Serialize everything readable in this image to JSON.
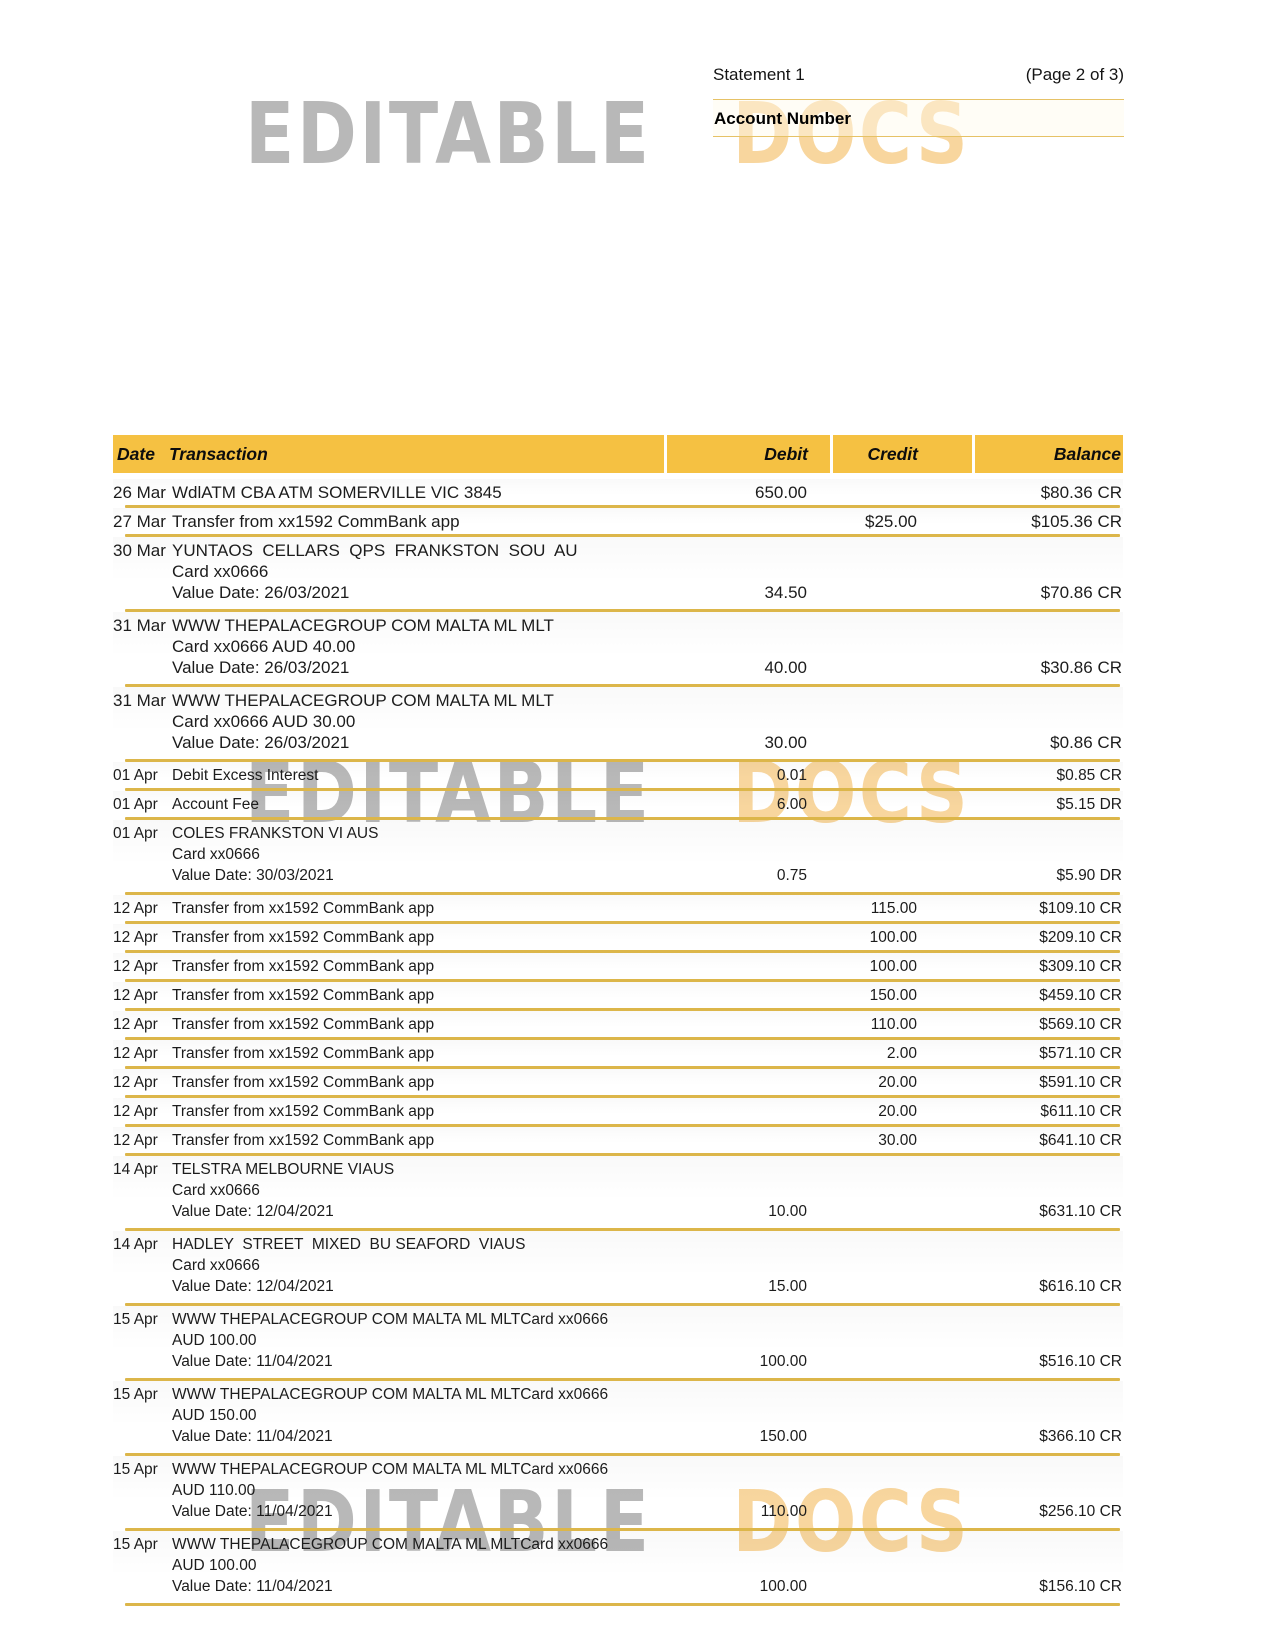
{
  "header": {
    "statement_label": "Statement 1",
    "page_label": "(Page 2 of 3)",
    "account_number_label": "Account Number"
  },
  "watermark": {
    "word1": "EDITABLE",
    "word2": "DOCS",
    "gray_color": "#8c8c8c",
    "orange_color": "#f0a328"
  },
  "table": {
    "header_bg": "#f5c142",
    "separator_color": "#dcb64a",
    "columns": [
      "Date",
      "Transaction",
      "Debit",
      "Credit",
      "Balance"
    ],
    "rows": [
      {
        "date": "26 Mar",
        "lines": [
          "WdlATM CBA ATM SOMERVILLE VIC 3845"
        ],
        "debit": "650.00",
        "credit": "",
        "balance": "$80.36 CR"
      },
      {
        "date": "27 Mar",
        "lines": [
          "Transfer from xx1592 CommBank app"
        ],
        "debit": "",
        "credit": "$25.00",
        "balance": "$105.36 CR"
      },
      {
        "date": "30 Mar",
        "lines": [
          "YUNTAOS  CELLARS  QPS  FRANKSTON  SOU  AU",
          "Card xx0666",
          "Value Date: 26/03/2021"
        ],
        "debit": "34.50",
        "credit": "",
        "balance": "$70.86 CR"
      },
      {
        "date": "31 Mar",
        "lines": [
          "WWW THEPALACEGROUP COM MALTA ML MLT",
          "Card xx0666 AUD 40.00",
          "Value Date: 26/03/2021"
        ],
        "debit": "40.00",
        "credit": "",
        "balance": "$30.86 CR"
      },
      {
        "date": "31 Mar",
        "lines": [
          "WWW THEPALACEGROUP COM MALTA ML MLT",
          "Card xx0666 AUD 30.00",
          "Value Date: 26/03/2021"
        ],
        "debit": "30.00",
        "credit": "",
        "balance": "$0.86 CR"
      },
      {
        "date": "01 Apr",
        "lines": [
          "Debit Excess Interest"
        ],
        "debit": "0.01",
        "credit": "",
        "balance": "$0.85 CR"
      },
      {
        "date": "01 Apr",
        "lines": [
          "Account Fee"
        ],
        "debit": "6.00",
        "credit": "",
        "balance": "$5.15 DR"
      },
      {
        "date": "01 Apr",
        "lines": [
          "COLES FRANKSTON VI AUS",
          "Card xx0666",
          "Value Date: 30/03/2021"
        ],
        "debit": "0.75",
        "credit": "",
        "balance": "$5.90 DR"
      },
      {
        "date": "12 Apr",
        "lines": [
          "Transfer from xx1592 CommBank app"
        ],
        "debit": "",
        "credit": "115.00",
        "balance": "$109.10 CR"
      },
      {
        "date": "12 Apr",
        "lines": [
          "Transfer from xx1592 CommBank app"
        ],
        "debit": "",
        "credit": "100.00",
        "balance": "$209.10 CR"
      },
      {
        "date": "12 Apr",
        "lines": [
          "Transfer from xx1592 CommBank app"
        ],
        "debit": "",
        "credit": "100.00",
        "balance": "$309.10 CR"
      },
      {
        "date": "12 Apr",
        "lines": [
          "Transfer from xx1592 CommBank app"
        ],
        "debit": "",
        "credit": "150.00",
        "balance": "$459.10 CR"
      },
      {
        "date": "12 Apr",
        "lines": [
          "Transfer from xx1592 CommBank app"
        ],
        "debit": "",
        "credit": "110.00",
        "balance": "$569.10 CR"
      },
      {
        "date": "12 Apr",
        "lines": [
          "Transfer from xx1592 CommBank app"
        ],
        "debit": "",
        "credit": "2.00",
        "balance": "$571.10 CR"
      },
      {
        "date": "12 Apr",
        "lines": [
          "Transfer from xx1592 CommBank app"
        ],
        "debit": "",
        "credit": "20.00",
        "balance": "$591.10 CR"
      },
      {
        "date": "12 Apr",
        "lines": [
          "Transfer from xx1592 CommBank app"
        ],
        "debit": "",
        "credit": "20.00",
        "balance": "$611.10 CR"
      },
      {
        "date": "12 Apr",
        "lines": [
          "Transfer from xx1592 CommBank app"
        ],
        "debit": "",
        "credit": "30.00",
        "balance": "$641.10 CR"
      },
      {
        "date": "14 Apr",
        "lines": [
          "TELSTRA MELBOURNE VIAUS",
          "Card xx0666",
          "Value Date: 12/04/2021"
        ],
        "debit": "10.00",
        "credit": "",
        "balance": "$631.10 CR"
      },
      {
        "date": "14 Apr",
        "lines": [
          "HADLEY  STREET  MIXED  BU SEAFORD  VIAUS",
          "Card xx0666",
          "Value Date: 12/04/2021"
        ],
        "debit": "15.00",
        "credit": "",
        "balance": "$616.10 CR"
      },
      {
        "date": "15 Apr",
        "lines": [
          "WWW THEPALACEGROUP COM MALTA ML MLTCard xx0666",
          "AUD 100.00",
          "Value Date: 11/04/2021"
        ],
        "debit": "100.00",
        "credit": "",
        "balance": "$516.10 CR"
      },
      {
        "date": "15 Apr",
        "lines": [
          "WWW THEPALACEGROUP COM MALTA ML MLTCard xx0666",
          "AUD 150.00",
          "Value Date: 11/04/2021"
        ],
        "debit": "150.00",
        "credit": "",
        "balance": "$366.10 CR"
      },
      {
        "date": "15 Apr",
        "lines": [
          "WWW THEPALACEGROUP COM MALTA ML MLTCard xx0666",
          "AUD 110.00",
          "Value Date: 11/04/2021"
        ],
        "debit": "110.00",
        "credit": "",
        "balance": "$256.10 CR"
      },
      {
        "date": "15 Apr",
        "lines": [
          "WWW THEPALACEGROUP COM MALTA ML MLTCard xx0666",
          "AUD 100.00",
          "Value Date: 11/04/2021"
        ],
        "debit": "100.00",
        "credit": "",
        "balance": "$156.10 CR"
      }
    ]
  }
}
